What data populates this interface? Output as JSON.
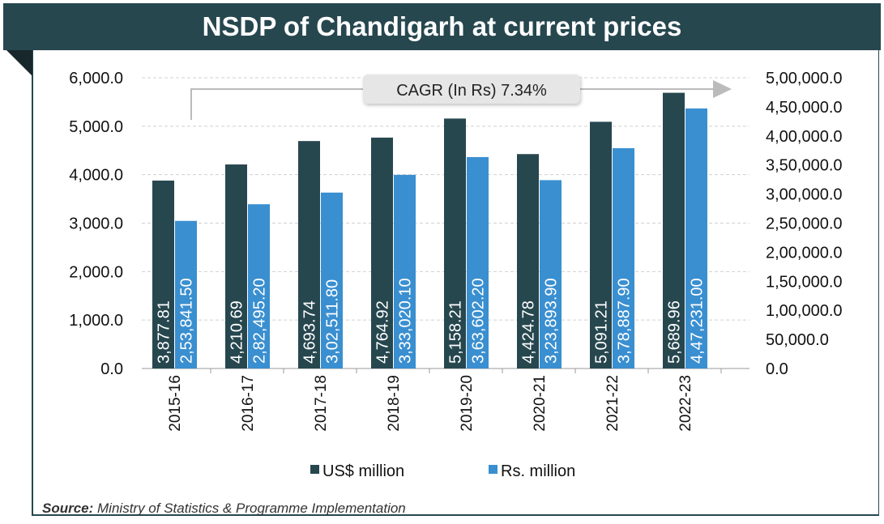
{
  "chart_data": {
    "type": "bar",
    "title": "NSDP of Chandigarh at current prices",
    "categories": [
      "2015-16",
      "2016-17",
      "2017-18",
      "2018-19",
      "2019-20",
      "2020-21",
      "2021-22",
      "2022-23"
    ],
    "series": [
      {
        "name": "US$ million",
        "axis": "left",
        "color": "#27474f",
        "values": [
          3877.81,
          4210.69,
          4693.74,
          4764.92,
          5158.21,
          4424.78,
          5091.21,
          5689.96
        ],
        "labels": [
          "3,877.81",
          "4,210.69",
          "4,693.74",
          "4,764.92",
          "5,158.21",
          "4,424.78",
          "5,091.21",
          "5,689.96"
        ]
      },
      {
        "name": "Rs. million",
        "axis": "right",
        "color": "#3a8fd0",
        "values": [
          253841.5,
          282495.2,
          302511.8,
          333020.1,
          363602.2,
          323893.9,
          378887.9,
          447231.0
        ],
        "labels": [
          "2,53,841.50",
          "2,82,495.20",
          "3,02,511.80",
          "3,33,020.10",
          "3,63,602.20",
          "3,23,893.90",
          "3,78,887.90",
          "4,47,231.00"
        ]
      }
    ],
    "y_left": {
      "range": [
        0,
        6000
      ],
      "ticks": [
        "0.0",
        "1,000.0",
        "2,000.0",
        "3,000.0",
        "4,000.0",
        "5,000.0",
        "6,000.0"
      ]
    },
    "y_right": {
      "range": [
        0,
        500000
      ],
      "ticks": [
        "0.0",
        "50,000.0",
        "1,00,000.0",
        "1,50,000.0",
        "2,00,000.0",
        "2,50,000.0",
        "3,00,000.0",
        "3,50,000.0",
        "4,00,000.0",
        "4,50,000.0",
        "5,00,000.0"
      ]
    },
    "grid": true,
    "legend": "bottom",
    "annotation": "CAGR (In Rs) 7.34%"
  },
  "source": {
    "label": "Source:",
    "text": " Ministry of Statistics & Programme Implementation"
  }
}
